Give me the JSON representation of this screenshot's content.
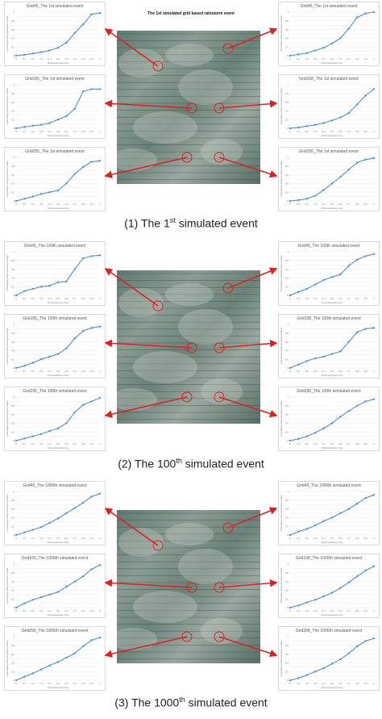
{
  "panels": [
    {
      "map_title": "The 1st simulated grid based rainstorm event",
      "caption": {
        "num": "(1)",
        "pre": "The 1",
        "sup": "st",
        "post": " simulated event"
      },
      "charts": [
        {
          "title": "Grid45_The 1st simulated event",
          "values": [
            0,
            0.02,
            0.05,
            0.08,
            0.12,
            0.18,
            0.3,
            0.52,
            0.72,
            0.95,
            0.98
          ]
        },
        {
          "title": "Grid45_The 1st simulated event",
          "values": [
            0,
            0.03,
            0.06,
            0.12,
            0.18,
            0.28,
            0.4,
            0.62,
            0.88,
            0.97,
            1.0
          ]
        },
        {
          "title": "Grid165_The 1st simulated event",
          "values": [
            0,
            0.03,
            0.06,
            0.08,
            0.12,
            0.2,
            0.28,
            0.45,
            0.85,
            0.9,
            0.9
          ]
        },
        {
          "title": "Grid108_The 1st simulated event",
          "values": [
            0,
            0.02,
            0.05,
            0.08,
            0.12,
            0.18,
            0.25,
            0.35,
            0.55,
            0.75,
            0.9
          ]
        },
        {
          "title": "Grid295_The 1st simulated event",
          "values": [
            0,
            0.05,
            0.1,
            0.16,
            0.2,
            0.24,
            0.4,
            0.62,
            0.78,
            0.9,
            0.92
          ]
        },
        {
          "title": "Grid295_The 1st simulated event",
          "values": [
            0,
            0.02,
            0.05,
            0.12,
            0.25,
            0.4,
            0.55,
            0.72,
            0.88,
            0.95,
            0.98
          ]
        }
      ]
    },
    {
      "map_title": "",
      "caption": {
        "num": "(2)",
        "pre": "The 100",
        "sup": "th",
        "post": " simulated event"
      },
      "charts": [
        {
          "title": "Grid45_The 100th simulated event",
          "values": [
            0,
            0.1,
            0.15,
            0.2,
            0.22,
            0.3,
            0.32,
            0.6,
            0.85,
            0.9,
            0.92
          ]
        },
        {
          "title": "Grid45_The 100th simulated event",
          "values": [
            0,
            0.08,
            0.15,
            0.25,
            0.35,
            0.42,
            0.48,
            0.68,
            0.82,
            0.9,
            0.95
          ]
        },
        {
          "title": "Grid165_The 100th simulated event",
          "values": [
            0,
            0.05,
            0.12,
            0.2,
            0.26,
            0.32,
            0.45,
            0.68,
            0.85,
            0.92,
            0.95
          ]
        },
        {
          "title": "Grid108_The 100th simulated event",
          "values": [
            0,
            0.08,
            0.16,
            0.22,
            0.26,
            0.32,
            0.38,
            0.6,
            0.82,
            0.9,
            0.92
          ]
        },
        {
          "title": "Grid295_The 100th simulated event",
          "values": [
            0,
            0.05,
            0.1,
            0.15,
            0.22,
            0.28,
            0.4,
            0.65,
            0.82,
            0.9,
            0.98
          ]
        },
        {
          "title": "Grid295_The 100th simulated event",
          "values": [
            0,
            0.04,
            0.1,
            0.18,
            0.28,
            0.4,
            0.55,
            0.68,
            0.8,
            0.9,
            0.95
          ]
        }
      ]
    },
    {
      "map_title": "",
      "caption": {
        "num": "(3)",
        "pre": "The 1000",
        "sup": "th",
        "post": " simulated event"
      },
      "charts": [
        {
          "title": "Grid45_The 1000th simulated event",
          "values": [
            0,
            0.06,
            0.12,
            0.18,
            0.28,
            0.38,
            0.5,
            0.62,
            0.74,
            0.88,
            0.95
          ]
        },
        {
          "title": "Grid45_The 1000th simulated event",
          "values": [
            0,
            0.08,
            0.14,
            0.22,
            0.32,
            0.4,
            0.5,
            0.6,
            0.72,
            0.85,
            0.92
          ]
        },
        {
          "title": "Grid165_The 1000th simulated event",
          "values": [
            0,
            0.1,
            0.18,
            0.24,
            0.3,
            0.36,
            0.48,
            0.6,
            0.72,
            0.88,
            0.98
          ]
        },
        {
          "title": "Grid108_The 1000th simulated event",
          "values": [
            0,
            0.05,
            0.12,
            0.18,
            0.26,
            0.34,
            0.45,
            0.58,
            0.72,
            0.85,
            0.95
          ]
        },
        {
          "title": "Grid295_The 1000th simulated event",
          "values": [
            0,
            0.08,
            0.16,
            0.25,
            0.34,
            0.42,
            0.52,
            0.62,
            0.78,
            0.92,
            0.98
          ]
        },
        {
          "title": "Grid308_The 1000th simulated event",
          "values": [
            0,
            0.05,
            0.12,
            0.2,
            0.28,
            0.38,
            0.48,
            0.62,
            0.78,
            0.9,
            0.96
          ]
        }
      ]
    }
  ],
  "chart_data": [
    {
      "type": "line",
      "title": "Grid45_The 1st simulated event",
      "x": [
        0,
        0.1,
        0.2,
        0.3,
        0.4,
        0.5,
        0.6,
        0.7,
        0.8,
        0.9,
        1
      ],
      "values": [
        0,
        0.02,
        0.05,
        0.08,
        0.12,
        0.18,
        0.3,
        0.52,
        0.72,
        0.95,
        0.98
      ],
      "xlabel": "Dimensionless time",
      "ylabel": "Cumulative dimensionless rainfall",
      "xlim": [
        0,
        1
      ],
      "ylim": [
        0,
        1
      ]
    },
    {
      "type": "line",
      "title": "Grid45_The 1st simulated event",
      "x": [
        0,
        0.1,
        0.2,
        0.3,
        0.4,
        0.5,
        0.6,
        0.7,
        0.8,
        0.9,
        1
      ],
      "values": [
        0,
        0.03,
        0.06,
        0.12,
        0.18,
        0.28,
        0.4,
        0.62,
        0.88,
        0.97,
        1.0
      ],
      "xlabel": "Dimensionless time",
      "ylabel": "Cumulative dimensionless rainfall",
      "xlim": [
        0,
        1
      ],
      "ylim": [
        0,
        1
      ]
    },
    {
      "type": "line",
      "title": "Grid165_The 1st simulated event",
      "x": [
        0,
        0.1,
        0.2,
        0.3,
        0.4,
        0.5,
        0.6,
        0.7,
        0.8,
        0.9,
        1
      ],
      "values": [
        0,
        0.03,
        0.06,
        0.08,
        0.12,
        0.2,
        0.28,
        0.45,
        0.85,
        0.9,
        0.9
      ],
      "xlabel": "Dimensionless time",
      "ylabel": "Cumulative dimensionless rainfall",
      "xlim": [
        0,
        1
      ],
      "ylim": [
        0,
        1
      ]
    },
    {
      "type": "line",
      "title": "Grid108_The 1st simulated event",
      "x": [
        0,
        0.1,
        0.2,
        0.3,
        0.4,
        0.5,
        0.6,
        0.7,
        0.8,
        0.9,
        1
      ],
      "values": [
        0,
        0.02,
        0.05,
        0.08,
        0.12,
        0.18,
        0.25,
        0.35,
        0.55,
        0.75,
        0.9
      ],
      "xlabel": "Dimensionless time",
      "ylabel": "Cumulative dimensionless rainfall",
      "xlim": [
        0,
        1
      ],
      "ylim": [
        0,
        1
      ]
    },
    {
      "type": "line",
      "title": "Grid295_The 1st simulated event",
      "x": [
        0,
        0.1,
        0.2,
        0.3,
        0.4,
        0.5,
        0.6,
        0.7,
        0.8,
        0.9,
        1
      ],
      "values": [
        0,
        0.05,
        0.1,
        0.16,
        0.2,
        0.24,
        0.4,
        0.62,
        0.78,
        0.9,
        0.92
      ],
      "xlabel": "Dimensionless time",
      "ylabel": "Cumulative dimensionless rainfall",
      "xlim": [
        0,
        1
      ],
      "ylim": [
        0,
        1
      ]
    },
    {
      "type": "line",
      "title": "Grid295_The 1st simulated event",
      "x": [
        0,
        0.1,
        0.2,
        0.3,
        0.4,
        0.5,
        0.6,
        0.7,
        0.8,
        0.9,
        1
      ],
      "values": [
        0,
        0.02,
        0.05,
        0.12,
        0.25,
        0.4,
        0.55,
        0.72,
        0.88,
        0.95,
        0.98
      ],
      "xlabel": "Dimensionless time",
      "ylabel": "Cumulative dimensionless rainfall",
      "xlim": [
        0,
        1
      ],
      "ylim": [
        0,
        1
      ]
    },
    {
      "type": "line",
      "title": "Grid45_The 100th simulated event",
      "x": [
        0,
        0.1,
        0.2,
        0.3,
        0.4,
        0.5,
        0.6,
        0.7,
        0.8,
        0.9,
        1
      ],
      "values": [
        0,
        0.1,
        0.15,
        0.2,
        0.22,
        0.3,
        0.32,
        0.6,
        0.85,
        0.9,
        0.92
      ],
      "xlabel": "Dimensionless time",
      "ylabel": "Cumulative dimensionless rainfall",
      "xlim": [
        0,
        1
      ],
      "ylim": [
        0,
        1
      ]
    },
    {
      "type": "line",
      "title": "Grid45_The 100th simulated event",
      "x": [
        0,
        0.1,
        0.2,
        0.3,
        0.4,
        0.5,
        0.6,
        0.7,
        0.8,
        0.9,
        1
      ],
      "values": [
        0,
        0.08,
        0.15,
        0.25,
        0.35,
        0.42,
        0.48,
        0.68,
        0.82,
        0.9,
        0.95
      ],
      "xlabel": "Dimensionless time",
      "ylabel": "Cumulative dimensionless rainfall",
      "xlim": [
        0,
        1
      ],
      "ylim": [
        0,
        1
      ]
    },
    {
      "type": "line",
      "title": "Grid165_The 100th simulated event",
      "x": [
        0,
        0.1,
        0.2,
        0.3,
        0.4,
        0.5,
        0.6,
        0.7,
        0.8,
        0.9,
        1
      ],
      "values": [
        0,
        0.05,
        0.12,
        0.2,
        0.26,
        0.32,
        0.45,
        0.68,
        0.85,
        0.92,
        0.95
      ],
      "xlabel": "Dimensionless time",
      "ylabel": "Cumulative dimensionless rainfall",
      "xlim": [
        0,
        1
      ],
      "ylim": [
        0,
        1
      ]
    },
    {
      "type": "line",
      "title": "Grid108_The 100th simulated event",
      "x": [
        0,
        0.1,
        0.2,
        0.3,
        0.4,
        0.5,
        0.6,
        0.7,
        0.8,
        0.9,
        1
      ],
      "values": [
        0,
        0.08,
        0.16,
        0.22,
        0.26,
        0.32,
        0.38,
        0.6,
        0.82,
        0.9,
        0.92
      ],
      "xlabel": "Dimensionless time",
      "ylabel": "Cumulative dimensionless rainfall",
      "xlim": [
        0,
        1
      ],
      "ylim": [
        0,
        1
      ]
    },
    {
      "type": "line",
      "title": "Grid295_The 100th simulated event",
      "x": [
        0,
        0.1,
        0.2,
        0.3,
        0.4,
        0.5,
        0.6,
        0.7,
        0.8,
        0.9,
        1
      ],
      "values": [
        0,
        0.05,
        0.1,
        0.15,
        0.22,
        0.28,
        0.4,
        0.65,
        0.82,
        0.9,
        0.98
      ],
      "xlabel": "Dimensionless time",
      "ylabel": "Cumulative dimensionless rainfall",
      "xlim": [
        0,
        1
      ],
      "ylim": [
        0,
        1
      ]
    },
    {
      "type": "line",
      "title": "Grid295_The 100th simulated event",
      "x": [
        0,
        0.1,
        0.2,
        0.3,
        0.4,
        0.5,
        0.6,
        0.7,
        0.8,
        0.9,
        1
      ],
      "values": [
        0,
        0.04,
        0.1,
        0.18,
        0.28,
        0.4,
        0.55,
        0.68,
        0.8,
        0.9,
        0.95
      ],
      "xlabel": "Dimensionless time",
      "ylabel": "Cumulative dimensionless rainfall",
      "xlim": [
        0,
        1
      ],
      "ylim": [
        0,
        1
      ]
    },
    {
      "type": "line",
      "title": "Grid45_The 1000th simulated event",
      "x": [
        0,
        0.1,
        0.2,
        0.3,
        0.4,
        0.5,
        0.6,
        0.7,
        0.8,
        0.9,
        1
      ],
      "values": [
        0,
        0.06,
        0.12,
        0.18,
        0.28,
        0.38,
        0.5,
        0.62,
        0.74,
        0.88,
        0.95
      ],
      "xlabel": "Dimensionless time",
      "ylabel": "Cumulative dimensionless rainfall",
      "xlim": [
        0,
        1
      ],
      "ylim": [
        0,
        1
      ]
    },
    {
      "type": "line",
      "title": "Grid45_The 1000th simulated event",
      "x": [
        0,
        0.1,
        0.2,
        0.3,
        0.4,
        0.5,
        0.6,
        0.7,
        0.8,
        0.9,
        1
      ],
      "values": [
        0,
        0.08,
        0.14,
        0.22,
        0.32,
        0.4,
        0.5,
        0.6,
        0.72,
        0.85,
        0.92
      ],
      "xlabel": "Dimensionless time",
      "ylabel": "Cumulative dimensionless rainfall",
      "xlim": [
        0,
        1
      ],
      "ylim": [
        0,
        1
      ]
    },
    {
      "type": "line",
      "title": "Grid165_The 1000th simulated event",
      "x": [
        0,
        0.1,
        0.2,
        0.3,
        0.4,
        0.5,
        0.6,
        0.7,
        0.8,
        0.9,
        1
      ],
      "values": [
        0,
        0.1,
        0.18,
        0.24,
        0.3,
        0.36,
        0.48,
        0.6,
        0.72,
        0.88,
        0.98
      ],
      "xlabel": "Dimensionless time",
      "ylabel": "Cumulative dimensionless rainfall",
      "xlim": [
        0,
        1
      ],
      "ylim": [
        0,
        1
      ]
    },
    {
      "type": "line",
      "title": "Grid108_The 1000th simulated event",
      "x": [
        0,
        0.1,
        0.2,
        0.3,
        0.4,
        0.5,
        0.6,
        0.7,
        0.8,
        0.9,
        1
      ],
      "values": [
        0,
        0.05,
        0.12,
        0.18,
        0.26,
        0.34,
        0.45,
        0.58,
        0.72,
        0.85,
        0.95
      ],
      "xlabel": "Dimensionless time",
      "ylabel": "Cumulative dimensionless rainfall",
      "xlim": [
        0,
        1
      ],
      "ylim": [
        0,
        1
      ]
    },
    {
      "type": "line",
      "title": "Grid295_The 1000th simulated event",
      "x": [
        0,
        0.1,
        0.2,
        0.3,
        0.4,
        0.5,
        0.6,
        0.7,
        0.8,
        0.9,
        1
      ],
      "values": [
        0,
        0.08,
        0.16,
        0.25,
        0.34,
        0.42,
        0.52,
        0.62,
        0.78,
        0.92,
        0.98
      ],
      "xlabel": "Dimensionless time",
      "ylabel": "Cumulative dimensionless rainfall",
      "xlim": [
        0,
        1
      ],
      "ylim": [
        0,
        1
      ]
    },
    {
      "type": "line",
      "title": "Grid308_The 1000th simulated event",
      "x": [
        0,
        0.1,
        0.2,
        0.3,
        0.4,
        0.5,
        0.6,
        0.7,
        0.8,
        0.9,
        1
      ],
      "values": [
        0,
        0.05,
        0.12,
        0.2,
        0.28,
        0.38,
        0.48,
        0.62,
        0.78,
        0.9,
        0.96
      ],
      "xlabel": "Dimensionless time",
      "ylabel": "Cumulative dimensionless rainfall",
      "xlim": [
        0,
        1
      ],
      "ylim": [
        0,
        1
      ]
    }
  ],
  "axis": {
    "x_ticks": [
      "0",
      "0.1",
      "0.2",
      "0.3",
      "0.4",
      "0.5",
      "0.6",
      "0.7",
      "0.8",
      "0.9",
      "1"
    ],
    "y_ticks": [
      "0",
      "0.1",
      "0.2",
      "0.3",
      "0.4",
      "0.5",
      "0.6",
      "0.7",
      "0.8",
      "0.9",
      "1"
    ],
    "xlabel": "Dimensionless time",
    "ylabel": "Cumulative dimensionless rainfall"
  },
  "colors": {
    "series": "#4a90d9",
    "arrow": "#e02020",
    "circle": "#e02020",
    "grid": "#e6e6e6"
  }
}
